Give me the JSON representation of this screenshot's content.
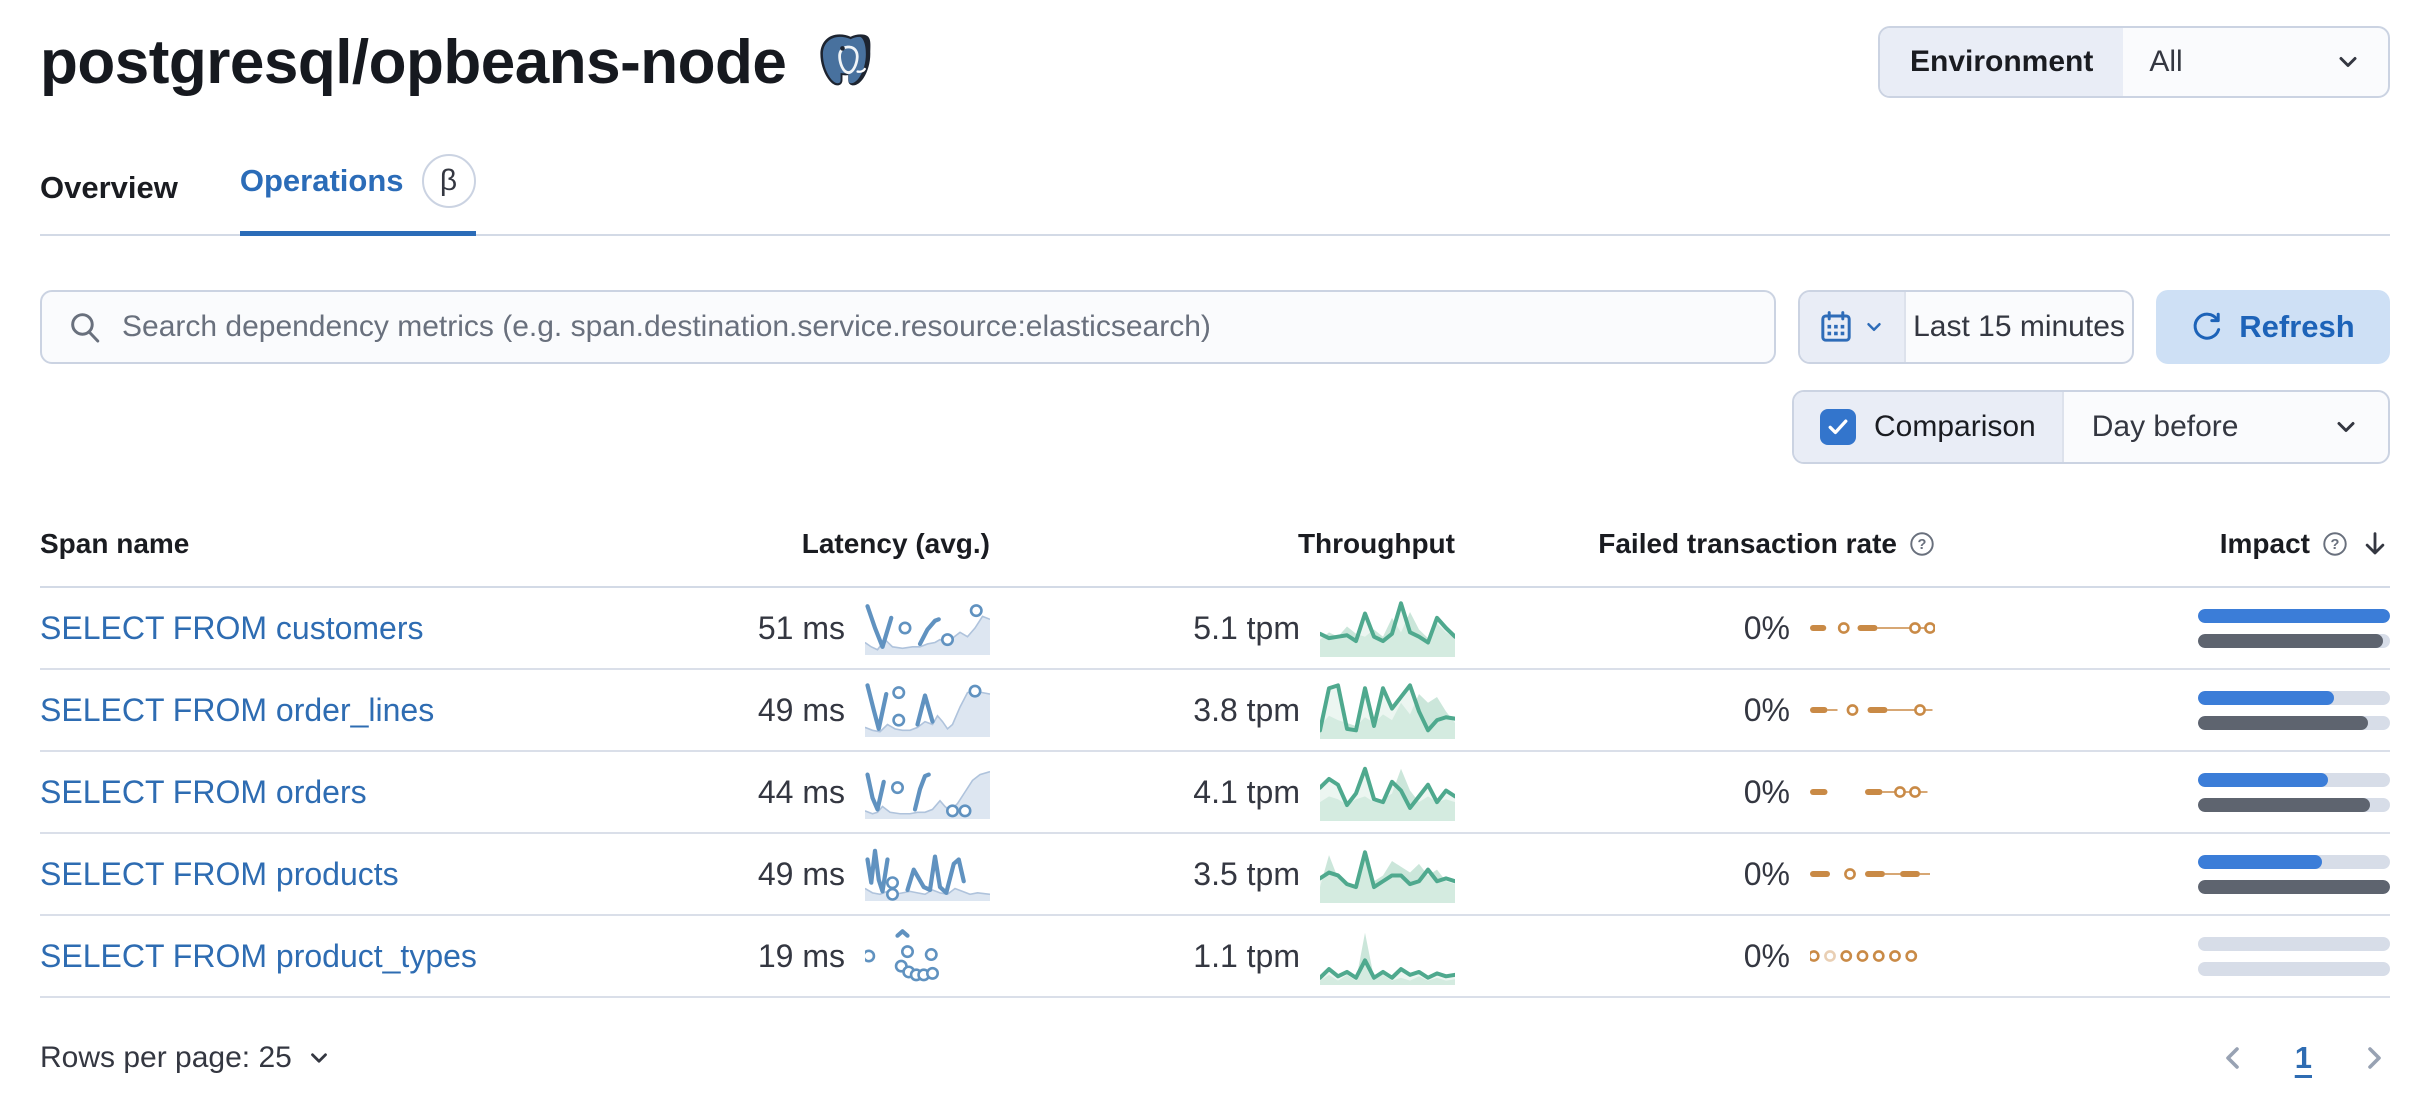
{
  "page": {
    "title": "postgresql/opbeans-node"
  },
  "environment": {
    "label": "Environment",
    "value": "All"
  },
  "tabs": [
    {
      "label": "Overview",
      "active": false
    },
    {
      "label": "Operations",
      "active": true,
      "badge": "β"
    }
  ],
  "search": {
    "placeholder": "Search dependency metrics (e.g. span.destination.service.resource:elasticsearch)"
  },
  "time_picker": {
    "value": "Last 15 minutes"
  },
  "refresh": {
    "label": "Refresh"
  },
  "comparison": {
    "label": "Comparison",
    "checked": true,
    "value": "Day before"
  },
  "table": {
    "columns": [
      "Span name",
      "Latency (avg.)",
      "Throughput",
      "Failed transaction rate",
      "Impact"
    ],
    "rows": [
      {
        "span_name": "SELECT FROM customers",
        "latency": "51 ms",
        "throughput": "5.1 tpm",
        "failed_rate": "0%",
        "impact": {
          "current": 1.0,
          "previous": 0.965
        },
        "latency_spark": {
          "area": [
            [
              0,
              30
            ],
            [
              5,
              33
            ],
            [
              10,
              35
            ],
            [
              16,
              28
            ],
            [
              22,
              33
            ],
            [
              30,
              34
            ],
            [
              38,
              33
            ],
            [
              44,
              33
            ],
            [
              50,
              31
            ],
            [
              56,
              30
            ],
            [
              60,
              28
            ],
            [
              64,
              30
            ],
            [
              70,
              27
            ],
            [
              76,
              23
            ],
            [
              82,
              26
            ],
            [
              88,
              20
            ],
            [
              94,
              12
            ],
            [
              100,
              14
            ]
          ],
          "lines": [
            [
              [
                2,
                5
              ],
              [
                8,
                20
              ],
              [
                14,
                33
              ],
              [
                21,
                13
              ]
            ],
            [
              [
                44,
                31
              ],
              [
                50,
                21
              ],
              [
                56,
                15
              ],
              [
                59,
                14
              ]
            ]
          ],
          "dots": [
            [
              32,
              20
            ],
            [
              66,
              28
            ],
            [
              89,
              8
            ]
          ]
        },
        "throughput_spark": {
          "line": [
            24,
            27,
            26,
            25,
            29,
            10,
            26,
            29,
            24,
            3,
            23,
            26,
            30,
            13,
            20,
            26
          ],
          "area": [
            28,
            23,
            26,
            19,
            24,
            26,
            21,
            26,
            13,
            23,
            9,
            21,
            27,
            17,
            23,
            27
          ]
        },
        "failed_spark": {
          "dashes": [
            [
              0,
              13
            ],
            [
              38,
              54
            ]
          ],
          "lines": [
            [
              54,
              82
            ],
            [
              86,
              94
            ]
          ],
          "dots": [
            27,
            84,
            96
          ],
          "fade": []
        }
      },
      {
        "span_name": "SELECT FROM order_lines",
        "latency": "49 ms",
        "throughput": "3.8 tpm",
        "failed_rate": "0%",
        "impact": {
          "current": 0.71,
          "previous": 0.885
        },
        "latency_spark": {
          "area": [
            [
              0,
              32
            ],
            [
              6,
              34
            ],
            [
              12,
              35
            ],
            [
              18,
              30
            ],
            [
              24,
              33
            ],
            [
              30,
              34
            ],
            [
              36,
              34
            ],
            [
              42,
              32
            ],
            [
              48,
              28
            ],
            [
              54,
              30
            ],
            [
              58,
              24
            ],
            [
              62,
              28
            ],
            [
              66,
              33
            ],
            [
              70,
              30
            ],
            [
              76,
              18
            ],
            [
              82,
              8
            ],
            [
              88,
              7
            ],
            [
              94,
              8
            ],
            [
              100,
              9
            ]
          ],
          "lines": [
            [
              [
                2,
                3
              ],
              [
                7,
                20
              ],
              [
                11,
                33
              ],
              [
                17,
                9
              ]
            ],
            [
              [
                42,
                30
              ],
              [
                48,
                10
              ],
              [
                54,
                28
              ]
            ]
          ],
          "dots": [
            [
              27,
              8
            ],
            [
              27,
              27
            ],
            [
              88,
              7
            ]
          ]
        },
        "throughput_spark": {
          "line": [
            34,
            5,
            3,
            33,
            34,
            5,
            31,
            5,
            19,
            11,
            3,
            21,
            34,
            27,
            25,
            26
          ],
          "area": [
            31,
            24,
            27,
            29,
            31,
            25,
            29,
            23,
            27,
            15,
            23,
            9,
            15,
            11,
            21,
            29
          ]
        },
        "failed_spark": {
          "dashes": [
            [
              0,
              14
            ],
            [
              46,
              62
            ]
          ],
          "lines": [
            [
              14,
              22
            ],
            [
              62,
              86
            ],
            [
              90,
              98
            ]
          ],
          "dots": [
            34,
            88
          ],
          "fade": []
        }
      },
      {
        "span_name": "SELECT FROM orders",
        "latency": "44 ms",
        "throughput": "4.1 tpm",
        "failed_rate": "0%",
        "impact": {
          "current": 0.675,
          "previous": 0.895
        },
        "latency_spark": {
          "area": [
            [
              0,
              33
            ],
            [
              6,
              35
            ],
            [
              10,
              34
            ],
            [
              14,
              30
            ],
            [
              20,
              34
            ],
            [
              28,
              35
            ],
            [
              36,
              35
            ],
            [
              42,
              34
            ],
            [
              48,
              34
            ],
            [
              54,
              32
            ],
            [
              60,
              26
            ],
            [
              64,
              30
            ],
            [
              68,
              33
            ],
            [
              74,
              28
            ],
            [
              80,
              20
            ],
            [
              86,
              12
            ],
            [
              92,
              8
            ],
            [
              100,
              6
            ]
          ],
          "lines": [
            [
              [
                2,
                8
              ],
              [
                6,
                24
              ],
              [
                10,
                32
              ],
              [
                15,
                13
              ]
            ],
            [
              [
                40,
                32
              ],
              [
                44,
                18
              ],
              [
                48,
                9
              ],
              [
                51,
                8
              ]
            ]
          ],
          "dots": [
            [
              26,
              17
            ],
            [
              70,
              33
            ],
            [
              80,
              33
            ]
          ]
        },
        "throughput_spark": {
          "line": [
            17,
            11,
            15,
            29,
            21,
            4,
            25,
            27,
            13,
            19,
            31,
            23,
            15,
            27,
            19,
            23
          ],
          "area": [
            27,
            23,
            25,
            29,
            25,
            23,
            27,
            25,
            21,
            4,
            19,
            27,
            23,
            27,
            25,
            27
          ]
        },
        "failed_spark": {
          "dashes": [
            [
              0,
              14
            ],
            [
              44,
              58
            ]
          ],
          "lines": [
            [
              58,
              70
            ],
            [
              76,
              82
            ],
            [
              88,
              94
            ]
          ],
          "dots": [
            72,
            84
          ],
          "fade": []
        }
      },
      {
        "span_name": "SELECT FROM products",
        "latency": "49 ms",
        "throughput": "3.5 tpm",
        "failed_rate": "0%",
        "impact": {
          "current": 0.645,
          "previous": 1.0
        },
        "latency_spark": {
          "area": [
            [
              0,
              30
            ],
            [
              6,
              33
            ],
            [
              12,
              34
            ],
            [
              18,
              32
            ],
            [
              24,
              34
            ],
            [
              30,
              33
            ],
            [
              36,
              32
            ],
            [
              42,
              33
            ],
            [
              48,
              34
            ],
            [
              54,
              31
            ],
            [
              60,
              33
            ],
            [
              66,
              34
            ],
            [
              72,
              30
            ],
            [
              78,
              32
            ],
            [
              84,
              34
            ],
            [
              90,
              33
            ],
            [
              100,
              34
            ]
          ],
          "lines": [
            [
              [
                2,
                10
              ],
              [
                5,
                26
              ],
              [
                8,
                4
              ],
              [
                11,
                24
              ],
              [
                14,
                32
              ],
              [
                18,
                10
              ]
            ],
            [
              [
                34,
                31
              ],
              [
                39,
                17
              ],
              [
                43,
                23
              ],
              [
                47,
                29
              ],
              [
                52,
                31
              ],
              [
                56,
                8
              ],
              [
                60,
                29
              ],
              [
                65,
                33
              ],
              [
                71,
                13
              ],
              [
                75,
                10
              ],
              [
                79,
                25
              ]
            ]
          ],
          "dots": [
            [
              22,
              26
            ],
            [
              22,
              34
            ]
          ]
        },
        "throughput_spark": {
          "line": [
            23,
            19,
            21,
            27,
            29,
            5,
            29,
            25,
            21,
            21,
            27,
            25,
            17,
            25,
            23,
            25
          ],
          "area": [
            29,
            7,
            23,
            27,
            29,
            3,
            25,
            21,
            11,
            15,
            19,
            13,
            21,
            17,
            25,
            27
          ]
        },
        "failed_spark": {
          "dashes": [
            [
              0,
              16
            ],
            [
              44,
              60
            ],
            [
              72,
              88
            ]
          ],
          "lines": [
            [
              60,
              72
            ],
            [
              88,
              96
            ]
          ],
          "dots": [
            32
          ],
          "fade": []
        }
      },
      {
        "span_name": "SELECT FROM product_types",
        "latency": "19 ms",
        "throughput": "1.1 tpm",
        "failed_rate": "0%",
        "impact": {
          "current": 0.0,
          "previous": 0.0
        },
        "latency_spark": {
          "area": [],
          "lines": [
            [
              [
                26,
                6
              ],
              [
                30,
                3
              ],
              [
                34,
                6
              ]
            ]
          ],
          "dots": [
            [
              3,
              20
            ],
            [
              29,
              27
            ],
            [
              34,
              17
            ],
            [
              35,
              31
            ],
            [
              41,
              33
            ],
            [
              47,
              33
            ],
            [
              53,
              19
            ],
            [
              54,
              32
            ]
          ]
        },
        "throughput_spark": {
          "line": [
            35,
            29,
            34,
            31,
            35,
            23,
            35,
            31,
            35,
            29,
            33,
            31,
            35,
            32,
            34,
            33
          ],
          "area": [
            37,
            33,
            37,
            33,
            37,
            4,
            35,
            33,
            37,
            35,
            37,
            34,
            37,
            35,
            37,
            36
          ]
        },
        "failed_spark": {
          "dashes": [],
          "lines": [],
          "dots": [
            3,
            16,
            29,
            42,
            55,
            68,
            81
          ],
          "fade": [
            16
          ]
        }
      }
    ]
  },
  "footer": {
    "rows_per_page": "Rows per page: 25",
    "page": "1"
  },
  "colors": {
    "link": "#2e6cb2",
    "latency_line": "#6092c0",
    "latency_area": "#dde6f1",
    "latency_comp": "#afc3dc",
    "throughput_line": "#4fa98e",
    "throughput_area": "#c5e3d6",
    "throughput_line_area": "#ddeee6",
    "failed": "#c98a46",
    "impact_current": "#3b7dd8",
    "impact_previous": "#5e646f",
    "impact_track": "#d7dde8"
  }
}
